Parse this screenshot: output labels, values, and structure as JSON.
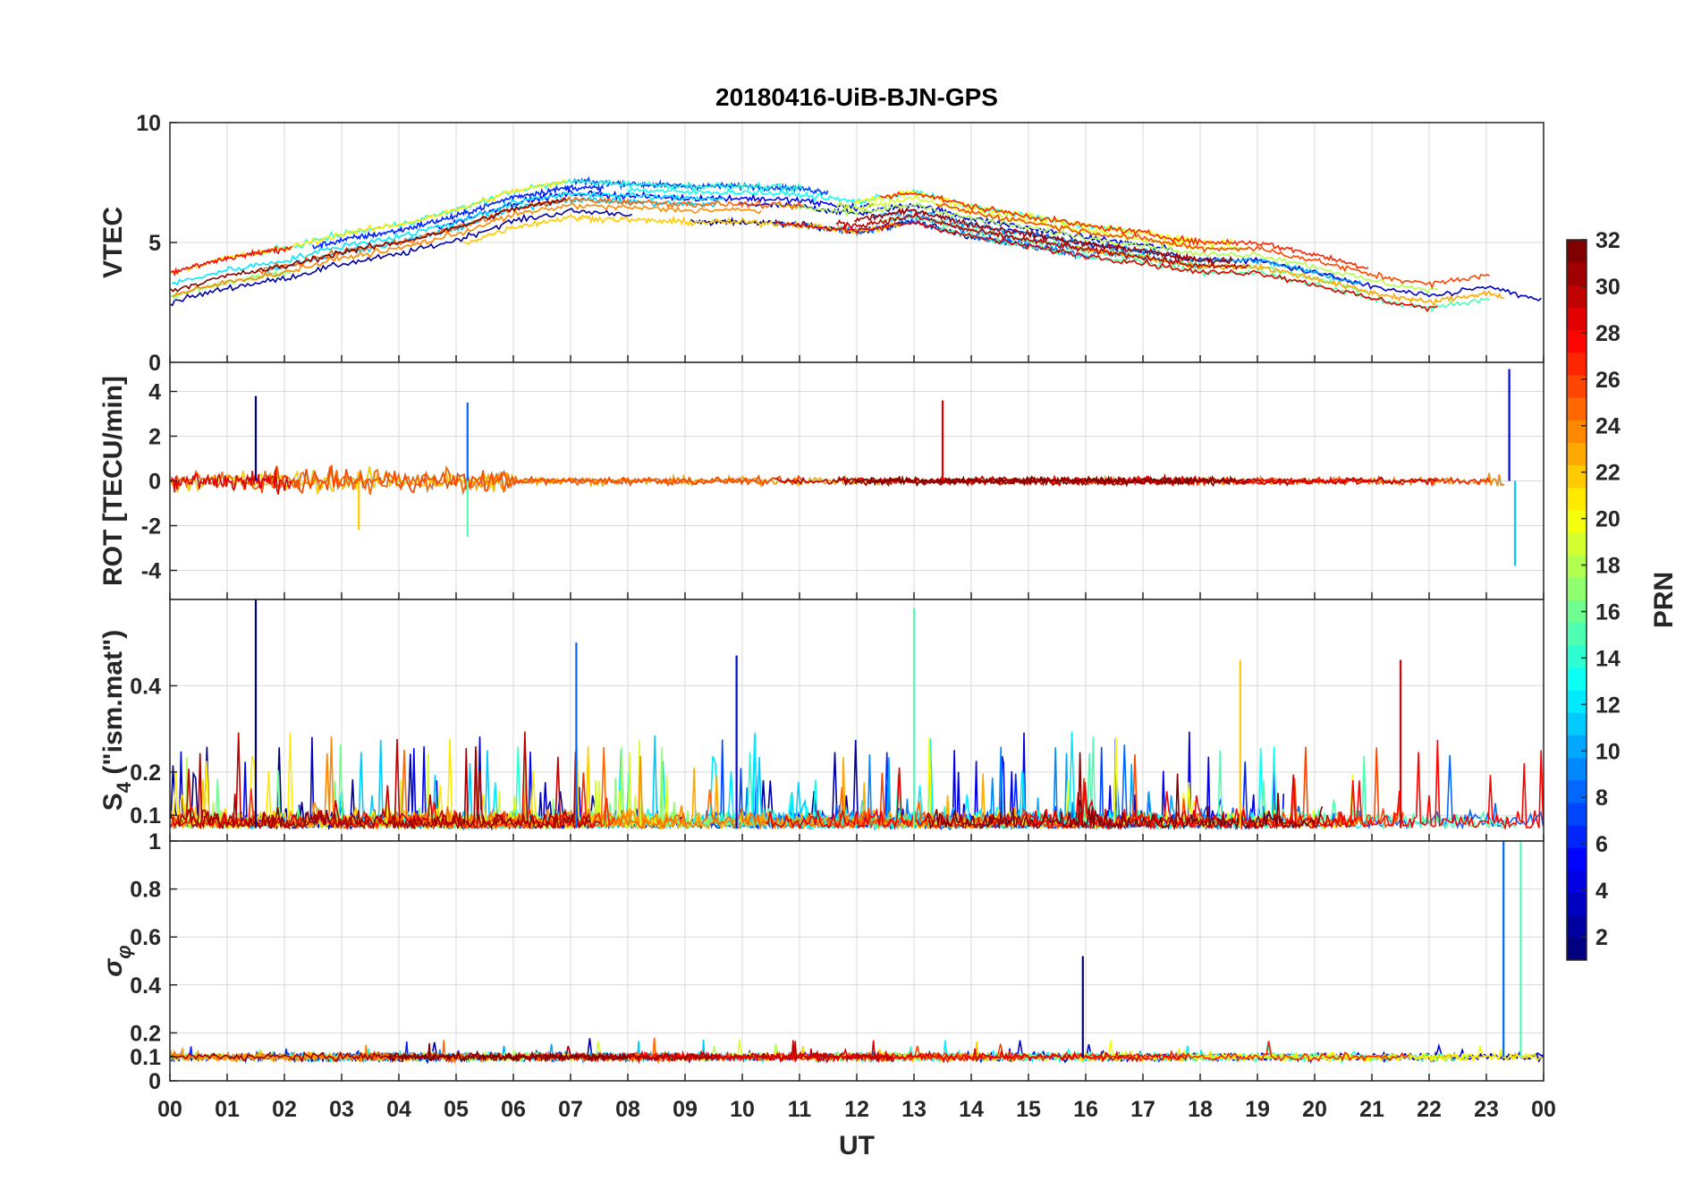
{
  "chart_data": {
    "type": "line",
    "title": "20180416-UiB-BJN-GPS",
    "xlabel": "UT",
    "x_tick_labels": [
      "00",
      "01",
      "02",
      "03",
      "04",
      "05",
      "06",
      "07",
      "08",
      "09",
      "10",
      "11",
      "12",
      "13",
      "14",
      "15",
      "16",
      "17",
      "18",
      "19",
      "20",
      "21",
      "22",
      "23",
      "00"
    ],
    "xlim": [
      0,
      24
    ],
    "grid": true,
    "colorbar": {
      "label": "PRN",
      "ticks": [
        "2",
        "4",
        "6",
        "8",
        "10",
        "12",
        "14",
        "16",
        "18",
        "20",
        "22",
        "24",
        "26",
        "28",
        "30",
        "32"
      ],
      "range": [
        1,
        32
      ],
      "colormap": "jet"
    },
    "panels": [
      {
        "id": "vtec",
        "ylabel": "VTEC",
        "ylim": [
          0,
          10
        ],
        "ytick_values": [
          0,
          5,
          10
        ],
        "ytick_labels": [
          "0",
          "5",
          "10"
        ],
        "typical_profile": {
          "x": [
            0,
            1,
            2,
            3,
            4,
            5,
            6,
            7,
            8,
            9,
            10,
            11,
            12,
            13,
            14,
            15,
            16,
            17,
            18,
            19,
            20,
            21,
            22,
            23,
            24
          ],
          "y": [
            3.0,
            3.6,
            4.0,
            4.6,
            5.0,
            5.6,
            6.4,
            6.8,
            6.7,
            6.6,
            6.6,
            6.5,
            6.2,
            6.6,
            6.0,
            5.6,
            5.2,
            4.9,
            4.5,
            4.5,
            4.0,
            3.4,
            3.0,
            3.4,
            2.8
          ]
        }
      },
      {
        "id": "rot",
        "ylabel": "ROT [TECU/min]",
        "ylim": [
          -5.3,
          5.3
        ],
        "ytick_values": [
          -4,
          -2,
          0,
          2,
          4
        ],
        "ytick_labels": [
          "-4",
          "-2",
          "0",
          "2",
          "4"
        ],
        "notable_spikes": [
          {
            "x": 1.5,
            "y": 3.8
          },
          {
            "x": 5.2,
            "y": 3.5
          },
          {
            "x": 5.2,
            "y": -2.5
          },
          {
            "x": 3.3,
            "y": -2.2
          },
          {
            "x": 13.5,
            "y": 3.6
          },
          {
            "x": 23.4,
            "y": 5.0
          },
          {
            "x": 23.5,
            "y": -3.8
          }
        ]
      },
      {
        "id": "s4",
        "ylabel_main": "S",
        "ylabel_sub": "4",
        "ylabel_rest": " (\"ism.mat\")",
        "ylim": [
          0.04,
          0.6
        ],
        "ytick_values": [
          0.1,
          0.2,
          0.4
        ],
        "ytick_labels": [
          "0.1",
          "0.2",
          "0.4"
        ],
        "notable_peaks": [
          {
            "x": 1.5,
            "y": 0.6
          },
          {
            "x": 7.1,
            "y": 0.5
          },
          {
            "x": 13.0,
            "y": 0.58
          },
          {
            "x": 18.7,
            "y": 0.46
          },
          {
            "x": 21.5,
            "y": 0.46
          },
          {
            "x": 9.9,
            "y": 0.47
          }
        ]
      },
      {
        "id": "sigma_phi",
        "ylabel_main": "σ",
        "ylabel_sub": "φ",
        "ylim": [
          0,
          1.0
        ],
        "ytick_values": [
          0,
          0.1,
          0.2,
          0.4,
          0.6,
          0.8,
          1.0
        ],
        "ytick_labels": [
          "0",
          "0.1",
          "0.2",
          "0.4",
          "0.6",
          "0.8",
          "1"
        ],
        "notable_peaks": [
          {
            "x": 15.95,
            "y": 0.52
          },
          {
            "x": 23.3,
            "y": 1.0
          },
          {
            "x": 23.6,
            "y": 1.0
          }
        ]
      }
    ]
  }
}
